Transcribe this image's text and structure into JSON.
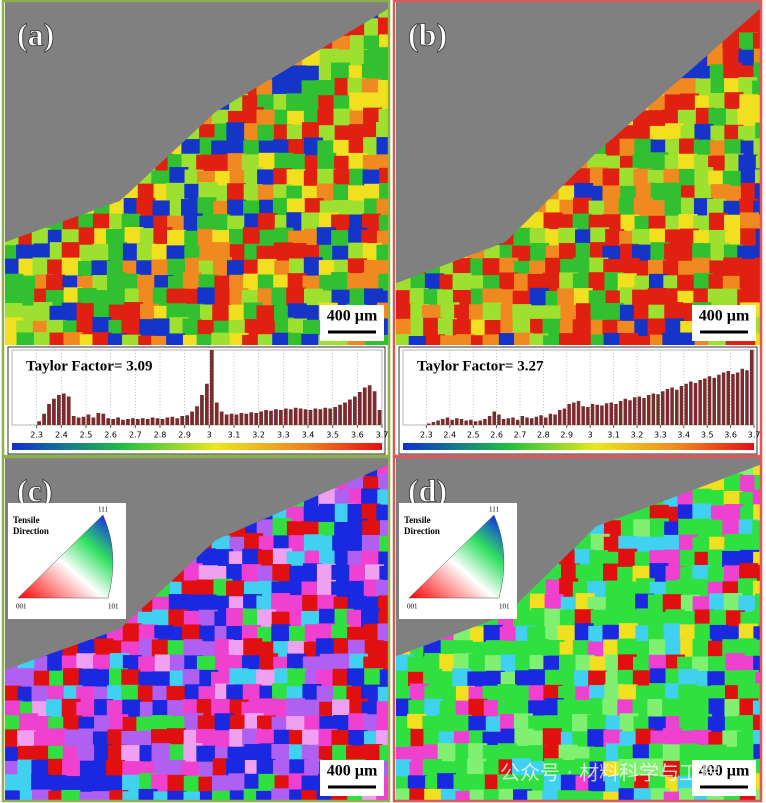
{
  "panels": [
    {
      "label": "(a)",
      "scale_bar": "400 µm"
    },
    {
      "label": "(b)",
      "scale_bar": "400 µm"
    },
    {
      "label": "(c)",
      "scale_bar": "400 µm"
    },
    {
      "label": "(d)",
      "scale_bar": "400 µm"
    }
  ],
  "ipf_legend": {
    "title_lines": [
      "Tensile",
      "Direction"
    ],
    "corners": [
      "111",
      "001",
      "101"
    ]
  },
  "watermark": "公众号 · 材料科学与工程",
  "chart_data": [
    {
      "type": "histogram",
      "title": "Taylor Factor= 3.09",
      "color": "#7a2b2b",
      "bins": [
        2.3,
        2.32,
        2.34,
        2.36,
        2.38,
        2.4,
        2.42,
        2.44,
        2.46,
        2.48,
        2.5,
        2.52,
        2.54,
        2.56,
        2.58,
        2.6,
        2.62,
        2.64,
        2.66,
        2.68,
        2.7,
        2.72,
        2.74,
        2.76,
        2.78,
        2.8,
        2.82,
        2.84,
        2.86,
        2.88,
        2.9,
        2.92,
        2.94,
        2.96,
        2.98,
        3,
        3.02,
        3.04,
        3.06,
        3.08,
        3.1,
        3.12,
        3.14,
        3.16,
        3.18,
        3.2,
        3.22,
        3.24,
        3.26,
        3.28,
        3.3,
        3.32,
        3.34,
        3.36,
        3.38,
        3.4,
        3.42,
        3.44,
        3.46,
        3.48,
        3.5,
        3.52,
        3.54,
        3.56,
        3.58,
        3.6,
        3.62,
        3.64,
        3.66,
        3.68,
        3.7
      ],
      "values": [
        5,
        15,
        28,
        35,
        40,
        42,
        38,
        12,
        10,
        11,
        14,
        10,
        16,
        15,
        9,
        8,
        10,
        7,
        8,
        9,
        8,
        9,
        8,
        10,
        9,
        8,
        10,
        11,
        9,
        12,
        13,
        18,
        25,
        40,
        55,
        100,
        30,
        18,
        14,
        15,
        14,
        16,
        15,
        17,
        16,
        18,
        20,
        19,
        21,
        20,
        22,
        21,
        23,
        22,
        21,
        20,
        22,
        21,
        23,
        22,
        24,
        27,
        30,
        34,
        38,
        44,
        50,
        53,
        45,
        20
      ],
      "xlim": [
        2.2,
        3.7
      ],
      "xticks": [
        2.3,
        2.4,
        2.5,
        2.6,
        2.7,
        2.8,
        2.9,
        3,
        3.1,
        3.2,
        3.3,
        3.4,
        3.5,
        3.6,
        3.7
      ],
      "ylim": [
        0,
        100
      ],
      "grid": true
    },
    {
      "type": "histogram",
      "title": "Taylor Factor= 3.27",
      "color": "#7a2b2b",
      "bins": [
        2.3,
        2.32,
        2.34,
        2.36,
        2.38,
        2.4,
        2.42,
        2.44,
        2.46,
        2.48,
        2.5,
        2.52,
        2.54,
        2.56,
        2.58,
        2.6,
        2.62,
        2.64,
        2.66,
        2.68,
        2.7,
        2.72,
        2.74,
        2.76,
        2.78,
        2.8,
        2.82,
        2.84,
        2.86,
        2.88,
        2.9,
        2.92,
        2.94,
        2.96,
        2.98,
        3,
        3.02,
        3.04,
        3.06,
        3.08,
        3.1,
        3.12,
        3.14,
        3.16,
        3.18,
        3.2,
        3.22,
        3.24,
        3.26,
        3.28,
        3.3,
        3.32,
        3.34,
        3.36,
        3.38,
        3.4,
        3.42,
        3.44,
        3.46,
        3.48,
        3.5,
        3.52,
        3.54,
        3.56,
        3.58,
        3.6,
        3.62,
        3.64,
        3.66,
        3.68,
        3.7
      ],
      "values": [
        2,
        4,
        6,
        8,
        10,
        7,
        9,
        8,
        6,
        7,
        5,
        6,
        8,
        12,
        18,
        14,
        8,
        9,
        10,
        7,
        12,
        10,
        9,
        11,
        13,
        10,
        15,
        14,
        20,
        22,
        28,
        30,
        32,
        25,
        24,
        28,
        27,
        26,
        29,
        30,
        28,
        32,
        35,
        33,
        37,
        38,
        36,
        40,
        42,
        41,
        45,
        48,
        50,
        47,
        52,
        55,
        58,
        56,
        60,
        62,
        65,
        63,
        67,
        70,
        72,
        68,
        70,
        75,
        73,
        100
      ],
      "xlim": [
        2.2,
        3.7
      ],
      "xticks": [
        2.3,
        2.4,
        2.5,
        2.6,
        2.7,
        2.8,
        2.9,
        3,
        3.1,
        3.2,
        3.3,
        3.4,
        3.5,
        3.6,
        3.7
      ],
      "ylim": [
        0,
        100
      ],
      "grid": true
    }
  ]
}
